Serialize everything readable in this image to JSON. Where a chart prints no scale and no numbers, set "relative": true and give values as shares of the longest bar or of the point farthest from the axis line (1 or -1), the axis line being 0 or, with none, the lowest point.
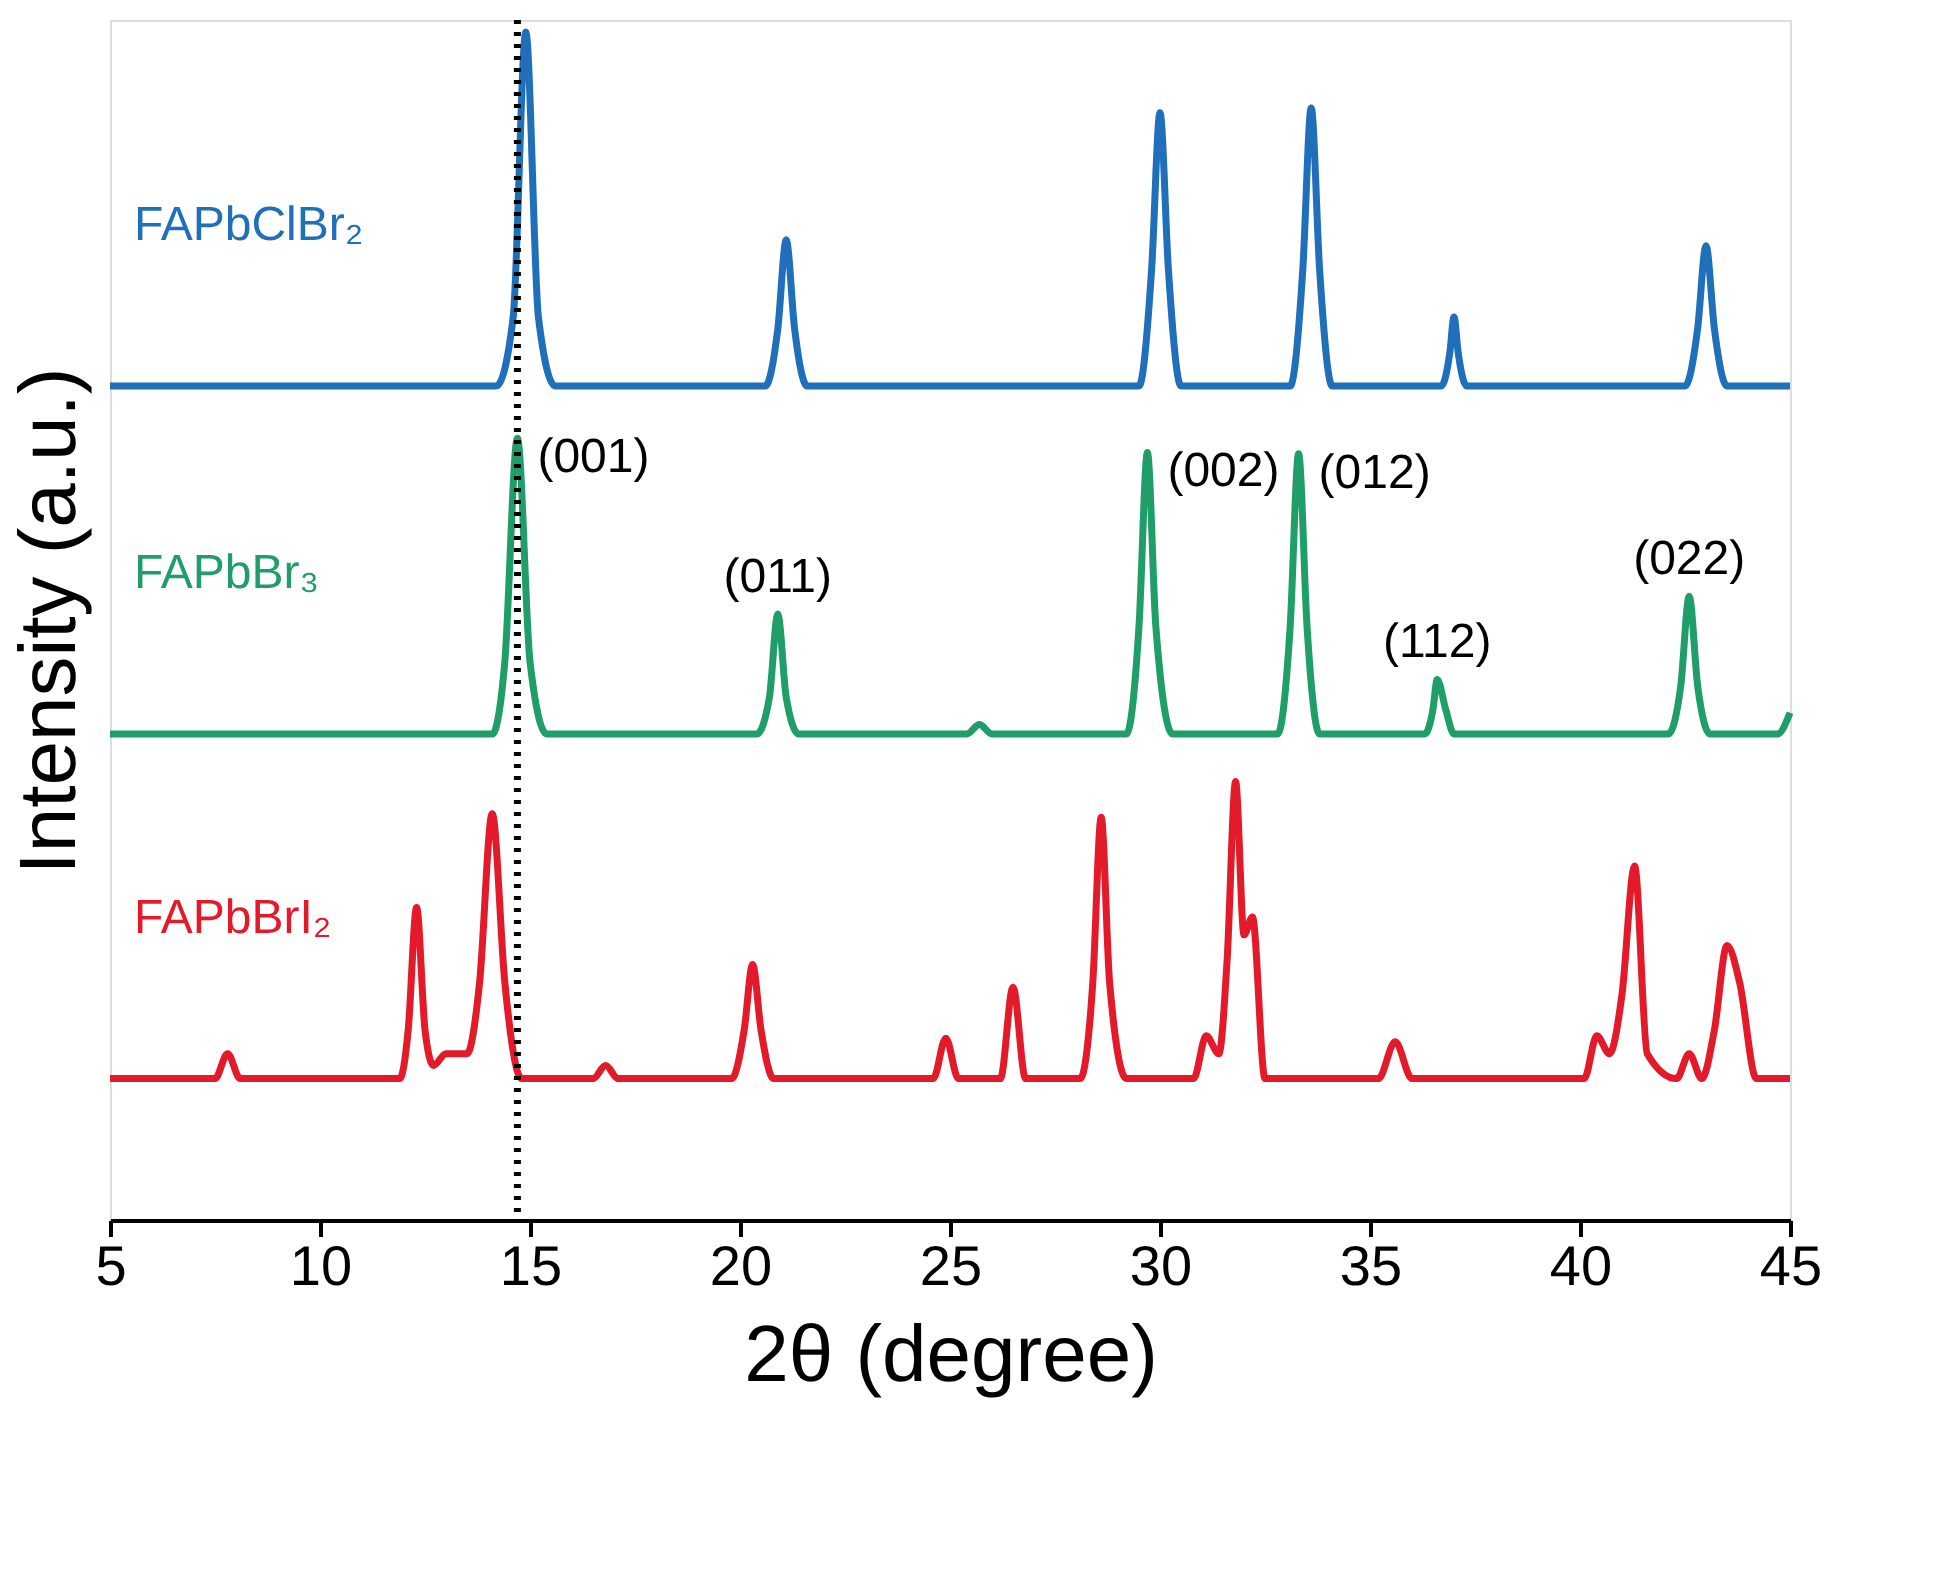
{
  "chart_data": {
    "type": "line",
    "relative": true,
    "xlabel": "2θ (degree)",
    "ylabel": "Intensity (a.u.)",
    "xlim": [
      5,
      45
    ],
    "xticks": [
      5,
      10,
      15,
      20,
      25,
      30,
      35,
      40,
      45
    ],
    "tick_labels": "x",
    "grid": false,
    "marker": "none",
    "line_style": "solid",
    "series": [
      {
        "name": "FAPbClBr₂",
        "color": "#1f6fba",
        "x": [
          5,
          14.2,
          14.6,
          14.9,
          15.2,
          15.6,
          20.6,
          20.9,
          21.1,
          21.3,
          21.6,
          29.5,
          29.8,
          30.0,
          30.2,
          30.5,
          33.1,
          33.4,
          33.6,
          33.8,
          34.1,
          36.7,
          36.9,
          37.0,
          37.1,
          37.3,
          42.5,
          42.8,
          43.0,
          43.2,
          43.5,
          45
        ],
        "values": [
          0.702,
          0.702,
          0.76,
          1.0,
          0.76,
          0.702,
          0.702,
          0.75,
          0.825,
          0.75,
          0.702,
          0.702,
          0.8,
          0.932,
          0.8,
          0.702,
          0.702,
          0.8,
          0.936,
          0.8,
          0.702,
          0.702,
          0.73,
          0.76,
          0.73,
          0.702,
          0.702,
          0.75,
          0.82,
          0.75,
          0.702,
          0.702
        ]
      },
      {
        "name": "FAPbBr₃",
        "color": "#1f9e6a",
        "x": [
          5,
          14.1,
          14.4,
          14.7,
          15.0,
          15.4,
          20.4,
          20.7,
          20.9,
          21.1,
          21.4,
          25.4,
          25.7,
          26.0,
          29.2,
          29.5,
          29.7,
          29.9,
          30.3,
          32.8,
          33.1,
          33.3,
          33.5,
          33.8,
          36.3,
          36.5,
          36.6,
          36.8,
          37.0,
          42.1,
          42.4,
          42.6,
          42.8,
          43.1,
          44.7,
          45
        ],
        "values": [
          0.409,
          0.409,
          0.47,
          0.658,
          0.47,
          0.409,
          0.409,
          0.44,
          0.51,
          0.44,
          0.409,
          0.409,
          0.417,
          0.409,
          0.409,
          0.5,
          0.646,
          0.5,
          0.409,
          0.409,
          0.5,
          0.645,
          0.5,
          0.409,
          0.409,
          0.43,
          0.455,
          0.43,
          0.409,
          0.409,
          0.45,
          0.525,
          0.45,
          0.409,
          0.409,
          0.427
        ]
      },
      {
        "name": "FAPbBrI₂",
        "color": "#e31a2a",
        "x": [
          5,
          7.5,
          7.8,
          8.1,
          11.9,
          12.1,
          12.3,
          12.5,
          12.7,
          13.0,
          13.5,
          13.8,
          14.1,
          14.4,
          14.8,
          16.5,
          16.8,
          17.1,
          19.8,
          20.1,
          20.3,
          20.5,
          20.8,
          24.6,
          24.9,
          25.2,
          26.2,
          26.5,
          26.8,
          28.1,
          28.4,
          28.6,
          28.8,
          29.2,
          30.8,
          31.1,
          31.4,
          31.6,
          31.8,
          32.0,
          32.2,
          32.5,
          35.2,
          35.6,
          36.0,
          40.1,
          40.4,
          40.7,
          41.0,
          41.3,
          41.6,
          42.3,
          42.6,
          42.9,
          43.2,
          43.5,
          43.8,
          44.2,
          45
        ],
        "values": [
          0.119,
          0.119,
          0.14,
          0.119,
          0.119,
          0.16,
          0.263,
          0.16,
          0.13,
          0.14,
          0.14,
          0.2,
          0.342,
          0.2,
          0.119,
          0.119,
          0.13,
          0.119,
          0.119,
          0.16,
          0.215,
          0.16,
          0.119,
          0.119,
          0.153,
          0.119,
          0.119,
          0.196,
          0.119,
          0.119,
          0.2,
          0.339,
          0.2,
          0.119,
          0.119,
          0.155,
          0.14,
          0.22,
          0.369,
          0.24,
          0.255,
          0.119,
          0.119,
          0.15,
          0.119,
          0.119,
          0.155,
          0.14,
          0.19,
          0.298,
          0.14,
          0.119,
          0.14,
          0.119,
          0.16,
          0.231,
          0.2,
          0.119,
          0.119
        ]
      }
    ],
    "ref_lines": [
      {
        "axis": "x",
        "value": 14.7,
        "color": "#000000",
        "line_style": "dotted"
      }
    ],
    "annotations": [
      {
        "text": "(001)",
        "x": 14.7,
        "y": 0.658
      },
      {
        "text": "(011)",
        "x": 20.9,
        "y": 0.51
      },
      {
        "text": "(002)",
        "x": 29.7,
        "y": 0.646
      },
      {
        "text": "(012)",
        "x": 33.3,
        "y": 0.645
      },
      {
        "text": "(112)",
        "x": 36.6,
        "y": 0.455
      },
      {
        "text": "(022)",
        "x": 42.6,
        "y": 0.525
      }
    ]
  }
}
